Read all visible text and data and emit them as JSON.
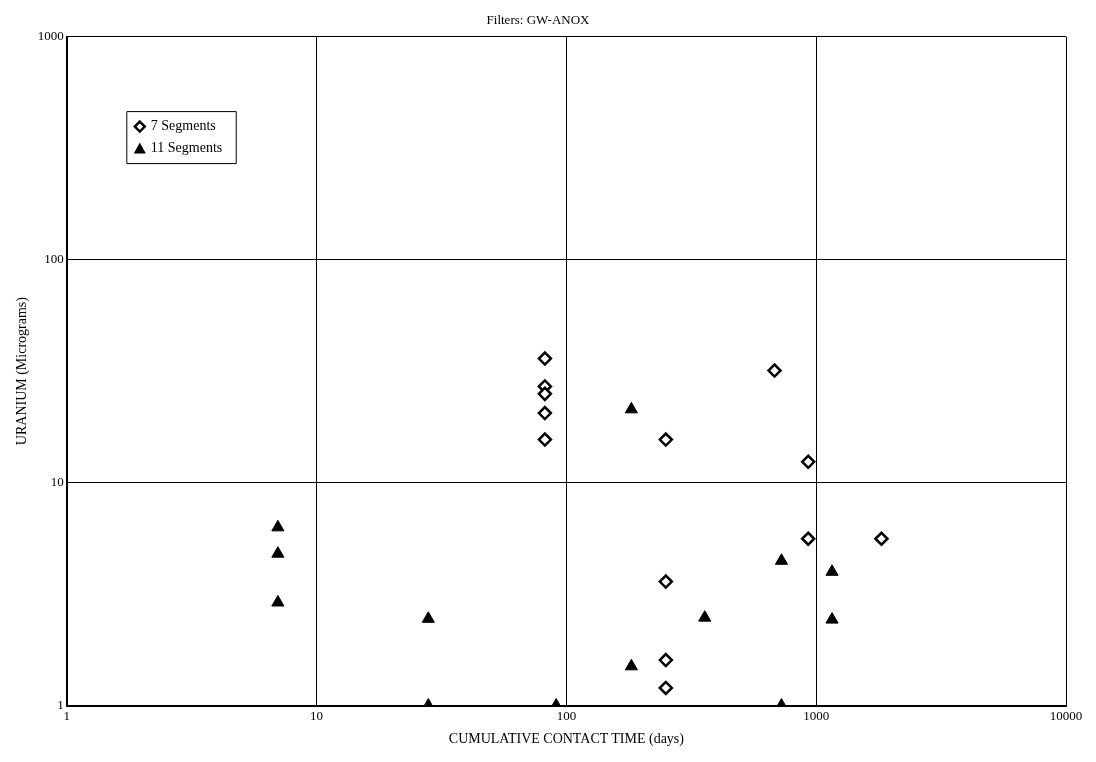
{
  "chart_data": {
    "type": "scatter",
    "title": "Filters: GW-ANOX",
    "xlabel": "CUMULATIVE CONTACT TIME (days)",
    "ylabel": "URANIUM (Micrograms)",
    "log": "xy",
    "grid": true,
    "legend": "top left",
    "xlim": [
      1,
      10000
    ],
    "xticks": [
      1,
      10,
      100,
      1000,
      10000
    ],
    "ylim": [
      1,
      1000
    ],
    "yticks": [
      1,
      10,
      100,
      1000
    ],
    "series": [
      {
        "name": "7 Segments",
        "color": "#000000",
        "marker": "diamond",
        "x": [
          82,
          82,
          82,
          82,
          82,
          681,
          250,
          929,
          929,
          250,
          250,
          250,
          1825
        ],
        "values": [
          36,
          27,
          25,
          20.5,
          15.6,
          31.8,
          15.6,
          12.4,
          5.6,
          3.6,
          1.6,
          1.2,
          5.6
        ]
      },
      {
        "name": "11 Segments",
        "color": "#000000",
        "marker": "triangle",
        "x": [
          7,
          7,
          7,
          28,
          28,
          91,
          182,
          182,
          358,
          726,
          726,
          1157,
          1157
        ],
        "values": [
          6.3,
          4.8,
          2.9,
          2.45,
          1,
          1,
          21.3,
          1.5,
          2.48,
          4.46,
          1,
          3.98,
          2.43
        ]
      }
    ]
  }
}
